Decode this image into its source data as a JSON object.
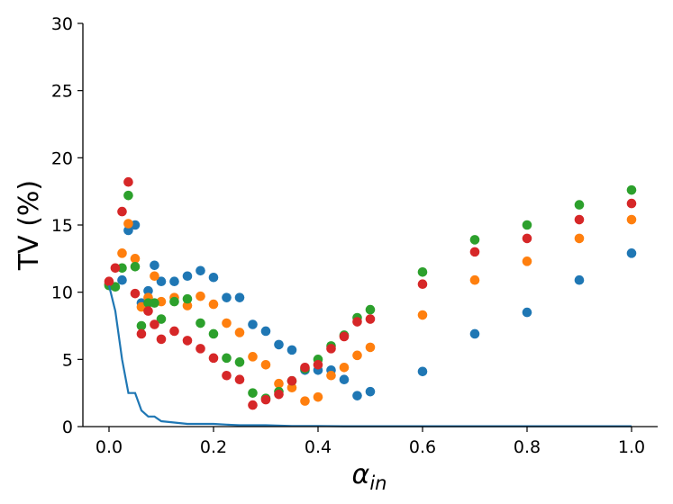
{
  "chart_data": {
    "type": "scatter",
    "title": "",
    "xlabel": "α",
    "xlabel_subscript": "in",
    "ylabel": "TV (%)",
    "xlim": [
      -0.05,
      1.05
    ],
    "ylim": [
      0,
      30
    ],
    "xticks": [
      0.0,
      0.2,
      0.4,
      0.6,
      0.8,
      1.0
    ],
    "xtick_labels": [
      "0.0",
      "0.2",
      "0.4",
      "0.6",
      "0.8",
      "1.0"
    ],
    "yticks": [
      0,
      5,
      10,
      15,
      20,
      25,
      30
    ],
    "ytick_labels": [
      "0",
      "5",
      "10",
      "15",
      "20",
      "25",
      "30"
    ],
    "grid": false,
    "colors": {
      "blue": "#1f77b4",
      "orange": "#ff7f0e",
      "green": "#2ca02c",
      "red": "#d62728"
    },
    "series": [
      {
        "color": "#1f77b4",
        "marker": "dot",
        "x": [
          0.0,
          0.025,
          0.037,
          0.05,
          0.062,
          0.075,
          0.087,
          0.1,
          0.125,
          0.15,
          0.175,
          0.2,
          0.225,
          0.25,
          0.275,
          0.3,
          0.325,
          0.35,
          0.375,
          0.4,
          0.425,
          0.45,
          0.475,
          0.5,
          0.6,
          0.7,
          0.8,
          0.9,
          1.0
        ],
        "y": [
          10.6,
          10.9,
          14.6,
          15.0,
          9.2,
          10.1,
          12.0,
          10.8,
          10.8,
          11.2,
          11.6,
          11.1,
          9.6,
          9.6,
          7.6,
          7.1,
          6.1,
          5.7,
          4.2,
          4.2,
          4.2,
          3.5,
          2.3,
          2.6,
          4.1,
          6.9,
          8.5,
          10.9,
          12.9
        ]
      },
      {
        "color": "#ff7f0e",
        "marker": "dot",
        "x": [
          0.0,
          0.025,
          0.037,
          0.05,
          0.062,
          0.075,
          0.087,
          0.1,
          0.125,
          0.15,
          0.175,
          0.2,
          0.225,
          0.25,
          0.275,
          0.3,
          0.325,
          0.35,
          0.375,
          0.4,
          0.425,
          0.45,
          0.475,
          0.5,
          0.6,
          0.7,
          0.8,
          0.9,
          1.0
        ],
        "y": [
          10.6,
          12.9,
          15.1,
          12.5,
          8.9,
          9.6,
          11.2,
          9.3,
          9.6,
          9.0,
          9.7,
          9.1,
          7.7,
          7.0,
          5.2,
          4.6,
          3.2,
          2.9,
          1.9,
          2.2,
          3.8,
          4.4,
          5.3,
          5.9,
          8.3,
          10.9,
          12.3,
          14.0,
          15.4
        ]
      },
      {
        "color": "#2ca02c",
        "marker": "dot",
        "x": [
          0.0,
          0.012,
          0.025,
          0.037,
          0.05,
          0.062,
          0.075,
          0.087,
          0.1,
          0.125,
          0.15,
          0.175,
          0.2,
          0.225,
          0.25,
          0.275,
          0.3,
          0.325,
          0.35,
          0.375,
          0.4,
          0.425,
          0.45,
          0.475,
          0.5,
          0.6,
          0.7,
          0.8,
          0.9,
          1.0
        ],
        "y": [
          10.5,
          10.4,
          11.8,
          17.2,
          11.9,
          7.5,
          9.2,
          9.2,
          8.0,
          9.3,
          9.5,
          7.7,
          6.9,
          5.1,
          4.8,
          2.5,
          2.1,
          2.6,
          3.4,
          4.3,
          5.0,
          6.0,
          6.8,
          8.1,
          8.7,
          11.5,
          13.9,
          15.0,
          16.5,
          17.6
        ]
      },
      {
        "color": "#d62728",
        "marker": "dot",
        "x": [
          0.0,
          0.012,
          0.025,
          0.037,
          0.05,
          0.062,
          0.075,
          0.087,
          0.1,
          0.125,
          0.15,
          0.175,
          0.2,
          0.225,
          0.25,
          0.275,
          0.3,
          0.325,
          0.35,
          0.375,
          0.4,
          0.425,
          0.45,
          0.475,
          0.5,
          0.6,
          0.7,
          0.8,
          0.9,
          1.0
        ],
        "y": [
          10.8,
          11.8,
          16.0,
          18.2,
          9.9,
          6.9,
          8.6,
          7.6,
          6.5,
          7.1,
          6.4,
          5.8,
          5.1,
          3.8,
          3.5,
          1.6,
          2.0,
          2.4,
          3.4,
          4.4,
          4.6,
          5.8,
          6.7,
          7.8,
          8.0,
          10.6,
          13.0,
          14.0,
          15.4,
          16.6
        ]
      },
      {
        "color": "#1f77b4",
        "marker": "line",
        "x": [
          0.0,
          0.012,
          0.025,
          0.037,
          0.05,
          0.062,
          0.075,
          0.087,
          0.1,
          0.125,
          0.15,
          0.175,
          0.2,
          0.225,
          0.25,
          0.3,
          0.35,
          0.4,
          0.45,
          0.5,
          0.6,
          0.7,
          0.8,
          0.9,
          1.0
        ],
        "y": [
          10.5,
          8.6,
          5.0,
          2.5,
          2.5,
          1.2,
          0.75,
          0.75,
          0.4,
          0.3,
          0.2,
          0.2,
          0.2,
          0.15,
          0.1,
          0.1,
          0.05,
          0.05,
          0.03,
          0.03,
          0.03,
          0.03,
          0.03,
          0.03,
          0.03
        ]
      }
    ]
  }
}
